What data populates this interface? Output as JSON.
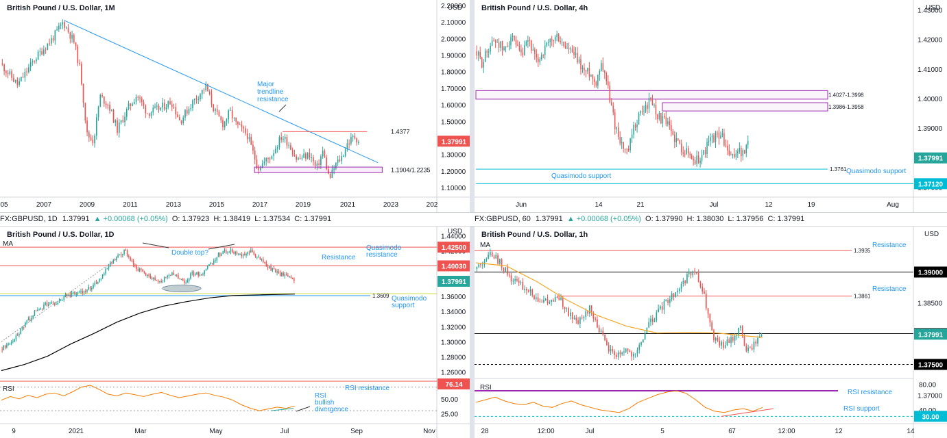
{
  "colors": {
    "up": "#26a69a",
    "down": "#ef5350",
    "line": "#2196f3",
    "rect": "#9c27b0",
    "ma_black": "#000000",
    "ma_orange": "#f5a623",
    "rsi_orange": "#f57c00",
    "red_line": "#ef5350"
  },
  "chart_data": [
    {
      "type": "candlestick",
      "title": "British Pound / U.S. Dollar, 1M",
      "currency": "USD",
      "x_ticks": [
        "05",
        "2007",
        "2009",
        "2011",
        "2013",
        "2015",
        "2017",
        "2019",
        "2021",
        "2023",
        "202"
      ],
      "y_ticks": [
        "2.20000",
        "2.10000",
        "2.00000",
        "1.90000",
        "1.80000",
        "1.70000",
        "1.60000",
        "1.50000",
        "1.40000",
        "1.30000",
        "1.20000",
        "1.10000"
      ],
      "ylim": [
        1.05,
        2.22
      ],
      "price_path": [
        [
          2005.0,
          1.85
        ],
        [
          2005.8,
          1.72
        ],
        [
          2006.6,
          1.88
        ],
        [
          2007.4,
          2.0
        ],
        [
          2007.9,
          2.1
        ],
        [
          2008.4,
          1.98
        ],
        [
          2008.7,
          1.8
        ],
        [
          2009.0,
          1.42
        ],
        [
          2009.3,
          1.38
        ],
        [
          2009.6,
          1.65
        ],
        [
          2010.0,
          1.6
        ],
        [
          2010.4,
          1.45
        ],
        [
          2010.9,
          1.58
        ],
        [
          2011.3,
          1.66
        ],
        [
          2011.8,
          1.55
        ],
        [
          2012.4,
          1.58
        ],
        [
          2012.9,
          1.62
        ],
        [
          2013.3,
          1.5
        ],
        [
          2013.9,
          1.62
        ],
        [
          2014.5,
          1.71
        ],
        [
          2014.9,
          1.56
        ],
        [
          2015.3,
          1.48
        ],
        [
          2015.6,
          1.56
        ],
        [
          2015.9,
          1.48
        ],
        [
          2016.4,
          1.42
        ],
        [
          2016.7,
          1.3
        ],
        [
          2016.9,
          1.22
        ],
        [
          2017.5,
          1.29
        ],
        [
          2018.0,
          1.41
        ],
        [
          2018.3,
          1.37
        ],
        [
          2018.7,
          1.27
        ],
        [
          2019.3,
          1.3
        ],
        [
          2019.6,
          1.21
        ],
        [
          2019.9,
          1.32
        ],
        [
          2020.2,
          1.15
        ],
        [
          2020.5,
          1.24
        ],
        [
          2020.8,
          1.29
        ],
        [
          2021.0,
          1.36
        ],
        [
          2021.35,
          1.41
        ],
        [
          2021.55,
          1.38
        ]
      ],
      "trendline": [
        [
          2007.9,
          2.11
        ],
        [
          2022.4,
          1.25
        ]
      ],
      "levels": [
        {
          "label": "1.4377",
          "value": 1.4377
        }
      ],
      "zone": {
        "label": "1.1904/1.2235",
        "low": 1.1904,
        "high": 1.2235
      },
      "annotations": [
        "Major",
        "trendline",
        "resistance"
      ],
      "last": "1.37991"
    },
    {
      "type": "candlestick",
      "title": "British Pound / U.S. Dollar, 4h",
      "currency": "USD",
      "x_ticks": [
        "Jun",
        "14",
        "21",
        "Jul",
        "12",
        "19",
        "Aug"
      ],
      "y_ticks": [
        "1.43000",
        "1.42000",
        "1.41000",
        "1.40000",
        "1.39000",
        "1.38000",
        "1.37000"
      ],
      "ylim": [
        1.3685,
        1.4315
      ],
      "price_path": [
        [
          0.0,
          1.416
        ],
        [
          0.04,
          1.412
        ],
        [
          0.08,
          1.418
        ],
        [
          0.12,
          1.42
        ],
        [
          0.16,
          1.416
        ],
        [
          0.2,
          1.421
        ],
        [
          0.22,
          1.418
        ],
        [
          0.26,
          1.414
        ],
        [
          0.3,
          1.42
        ],
        [
          0.34,
          1.412
        ],
        [
          0.38,
          1.416
        ],
        [
          0.42,
          1.419
        ],
        [
          0.46,
          1.421
        ],
        [
          0.49,
          1.418
        ],
        [
          0.53,
          1.416
        ],
        [
          0.57,
          1.413
        ],
        [
          0.61,
          1.409
        ],
        [
          0.64,
          1.409
        ],
        [
          0.67,
          1.405
        ],
        [
          0.7,
          1.412
        ],
        [
          0.72,
          1.41
        ],
        [
          0.75,
          1.4
        ],
        [
          0.78,
          1.391
        ],
        [
          0.82,
          1.384
        ],
        [
          0.85,
          1.381
        ],
        [
          0.88,
          1.389
        ],
        [
          0.91,
          1.394
        ],
        [
          0.95,
          1.397
        ],
        [
          0.98,
          1.4
        ],
        [
          1.02,
          1.394
        ],
        [
          1.06,
          1.392
        ],
        [
          1.1,
          1.388
        ],
        [
          1.14,
          1.384
        ],
        [
          1.18,
          1.382
        ],
        [
          1.22,
          1.379
        ],
        [
          1.26,
          1.38
        ],
        [
          1.3,
          1.385
        ],
        [
          1.33,
          1.387
        ],
        [
          1.37,
          1.388
        ],
        [
          1.4,
          1.383
        ],
        [
          1.43,
          1.379
        ],
        [
          1.46,
          1.383
        ],
        [
          1.49,
          1.381
        ],
        [
          1.52,
          1.384
        ]
      ],
      "levels": [
        {
          "label": "1.3761",
          "value": 1.3761
        },
        {
          "label": "1.37120",
          "value": 1.3712
        }
      ],
      "zones": [
        {
          "label": "1.4027-1.3998",
          "low": 1.3998,
          "high": 1.4027
        },
        {
          "label": "1.3986-1.3958",
          "low": 1.3958,
          "high": 1.3986
        }
      ],
      "annotations": [
        "Quasimodo support",
        "Quasimodo support"
      ],
      "last": "1.37991"
    },
    {
      "type": "candlestick",
      "title": "British Pound / U.S. Dollar, 1D",
      "currency": "USD",
      "x_ticks": [
        "9",
        "2021",
        "Mar",
        "May",
        "Jul",
        "Sep",
        "Nov"
      ],
      "y_ticks": [
        "1.44000",
        "1.42000",
        "1.40000",
        "1.38000",
        "1.36000",
        "1.34000",
        "1.32000",
        "1.30000",
        "1.28000",
        "1.26000"
      ],
      "ylim": [
        1.257,
        1.445
      ],
      "price_path": [
        [
          0.0,
          1.29
        ],
        [
          0.05,
          1.3
        ],
        [
          0.1,
          1.32
        ],
        [
          0.15,
          1.34
        ],
        [
          0.2,
          1.35
        ],
        [
          0.24,
          1.35
        ],
        [
          0.28,
          1.36
        ],
        [
          0.33,
          1.365
        ],
        [
          0.38,
          1.37
        ],
        [
          0.42,
          1.38
        ],
        [
          0.47,
          1.4
        ],
        [
          0.5,
          1.41
        ],
        [
          0.54,
          1.42
        ],
        [
          0.58,
          1.4
        ],
        [
          0.62,
          1.39
        ],
        [
          0.66,
          1.385
        ],
        [
          0.7,
          1.38
        ],
        [
          0.73,
          1.39
        ],
        [
          0.77,
          1.385
        ],
        [
          0.8,
          1.38
        ],
        [
          0.83,
          1.39
        ],
        [
          0.87,
          1.39
        ],
        [
          0.9,
          1.4
        ],
        [
          0.93,
          1.41
        ],
        [
          0.96,
          1.42
        ],
        [
          1.0,
          1.42
        ],
        [
          1.04,
          1.415
        ],
        [
          1.08,
          1.42
        ],
        [
          1.12,
          1.41
        ],
        [
          1.15,
          1.4
        ],
        [
          1.18,
          1.395
        ],
        [
          1.21,
          1.39
        ],
        [
          1.24,
          1.385
        ],
        [
          1.27,
          1.38
        ]
      ],
      "ma_label": "MA",
      "ma_path": [
        [
          0.0,
          1.262
        ],
        [
          0.1,
          1.27
        ],
        [
          0.2,
          1.281
        ],
        [
          0.3,
          1.297
        ],
        [
          0.4,
          1.311
        ],
        [
          0.5,
          1.326
        ],
        [
          0.6,
          1.338
        ],
        [
          0.7,
          1.347
        ],
        [
          0.8,
          1.353
        ],
        [
          0.9,
          1.358
        ],
        [
          1.0,
          1.361
        ],
        [
          1.12,
          1.362
        ],
        [
          1.27,
          1.363
        ]
      ],
      "levels": [
        {
          "label": "1.42500",
          "value": 1.425
        },
        {
          "label": "1.40030",
          "value": 1.4003
        },
        {
          "label": "1.3609",
          "value": 1.3609
        }
      ],
      "annotations": [
        "Double top?",
        "Resistance",
        "Quasimodo resistance",
        "Quasimodo support"
      ],
      "last": "1.37991",
      "rsi": {
        "label": "RSI",
        "ticks": [
          "75.00",
          "50.00",
          "25.00"
        ],
        "values": [
          48,
          54,
          50,
          56,
          52,
          58,
          60,
          55,
          62,
          70,
          73,
          66,
          58,
          55,
          60,
          57,
          54,
          58,
          61,
          56,
          52,
          55,
          58,
          60,
          56,
          53,
          48,
          40,
          34,
          30,
          33,
          36,
          34,
          38
        ],
        "marker": "76.14",
        "annotations": [
          "RSI resistance",
          "RSI bullish divergence"
        ]
      }
    },
    {
      "type": "candlestick",
      "title": "British Pound / U.S. Dollar, 1h",
      "currency": "USD",
      "x_ticks": [
        "28",
        "12:00",
        "Jul",
        "5",
        "6",
        "7",
        "12:00",
        "12",
        "14"
      ],
      "y_ticks": [
        "1.39000",
        "1.38500",
        "1.38000",
        "1.37500",
        "1.37000"
      ],
      "ylim": [
        1.3735,
        1.3965
      ],
      "price_path": [
        [
          0.0,
          1.3905
        ],
        [
          0.03,
          1.392
        ],
        [
          0.06,
          1.393
        ],
        [
          0.09,
          1.391
        ],
        [
          0.12,
          1.389
        ],
        [
          0.16,
          1.3875
        ],
        [
          0.2,
          1.386
        ],
        [
          0.24,
          1.385
        ],
        [
          0.28,
          1.3858
        ],
        [
          0.31,
          1.383
        ],
        [
          0.35,
          1.382
        ],
        [
          0.38,
          1.384
        ],
        [
          0.41,
          1.381
        ],
        [
          0.44,
          1.3775
        ],
        [
          0.47,
          1.3765
        ],
        [
          0.5,
          1.3775
        ],
        [
          0.53,
          1.376
        ],
        [
          0.57,
          1.381
        ],
        [
          0.6,
          1.383
        ],
        [
          0.63,
          1.385
        ],
        [
          0.67,
          1.387
        ],
        [
          0.7,
          1.389
        ],
        [
          0.73,
          1.39
        ],
        [
          0.76,
          1.386
        ],
        [
          0.79,
          1.379
        ],
        [
          0.82,
          1.378
        ],
        [
          0.85,
          1.379
        ],
        [
          0.88,
          1.381
        ],
        [
          0.9,
          1.377
        ],
        [
          0.92,
          1.378
        ],
        [
          0.95,
          1.38
        ]
      ],
      "ma_label": "MA",
      "ma_path": [
        [
          0.0,
          1.3915
        ],
        [
          0.1,
          1.391
        ],
        [
          0.2,
          1.3885
        ],
        [
          0.3,
          1.3855
        ],
        [
          0.4,
          1.383
        ],
        [
          0.5,
          1.3812
        ],
        [
          0.6,
          1.3801
        ],
        [
          0.7,
          1.3802
        ],
        [
          0.8,
          1.3801
        ],
        [
          0.9,
          1.3796
        ],
        [
          0.95,
          1.3794
        ]
      ],
      "levels": [
        {
          "label": "1.3935",
          "value": 1.3935
        },
        {
          "label": "1.39000",
          "value": 1.39
        },
        {
          "label": "1.3861",
          "value": 1.3861
        },
        {
          "label": "1.38000",
          "value": 1.38
        },
        {
          "label": "1.37500",
          "value": 1.375
        }
      ],
      "annotations": [
        "Resistance",
        "Resistance"
      ],
      "last": "1.37991",
      "rsi": {
        "label": "RSI",
        "ticks": [
          "80.00",
          "40.00"
        ],
        "values": [
          52,
          56,
          60,
          54,
          50,
          48,
          52,
          46,
          44,
          50,
          54,
          48,
          44,
          40,
          38,
          36,
          42,
          52,
          58,
          64,
          68,
          70,
          66,
          56,
          44,
          38,
          36,
          40,
          42,
          38,
          44
        ],
        "marker": "30.00",
        "annotations": [
          "RSI resistance",
          "RSI support"
        ]
      }
    }
  ],
  "info_bars": [
    {
      "symbol": "FX:GBPUSD, 1D",
      "price": "1.37991",
      "change": "▲ +0.00068 (+0.05%)",
      "o": "O: 1.37923",
      "h": "H: 1.38419",
      "l": "L: 1.37534",
      "c": "C: 1.37991"
    },
    {
      "symbol": "FX:GBPUSD, 60",
      "price": "1.37991",
      "change": "▲ +0.00068 (+0.05%)",
      "o": "O: 1.37990",
      "h": "H: 1.38030",
      "l": "L: 1.37956",
      "c": "C: 1.37991"
    }
  ]
}
